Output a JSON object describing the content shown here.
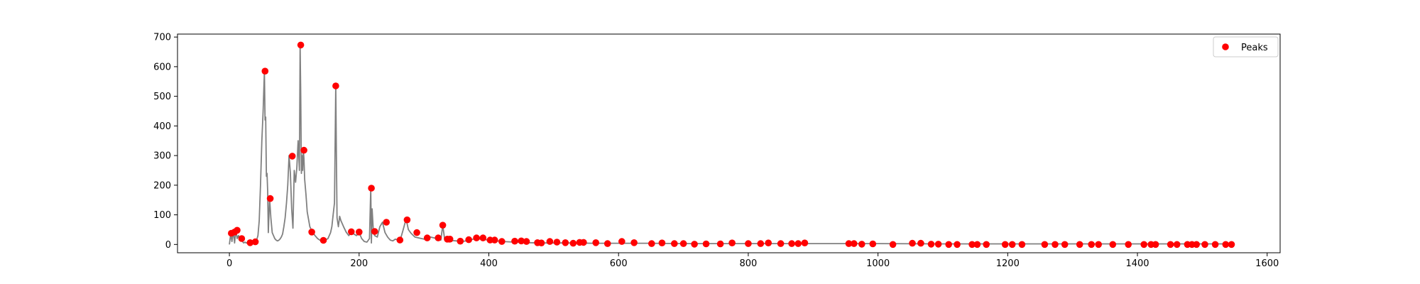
{
  "chart_data": {
    "type": "line",
    "xlim": [
      -80,
      1620
    ],
    "ylim": [
      -28,
      710
    ],
    "x_ticks": [
      0,
      200,
      400,
      600,
      800,
      1000,
      1200,
      1400,
      1600
    ],
    "y_ticks": [
      0,
      100,
      200,
      300,
      400,
      500,
      600,
      700
    ],
    "grid": false,
    "legend_placement": "top-right",
    "colors": {
      "line": "#808080",
      "peaks": "#ff0000",
      "axes": "#000000"
    },
    "series": [
      {
        "kind": "line",
        "x": [
          0,
          2,
          4,
          6,
          8,
          10,
          12,
          14,
          16,
          18,
          20,
          22,
          24,
          26,
          28,
          30,
          32,
          34,
          36,
          38,
          40,
          42,
          44,
          46,
          48,
          50,
          52,
          54,
          55,
          56,
          57,
          58,
          59,
          60,
          62,
          64,
          66,
          68,
          70,
          72,
          74,
          76,
          78,
          80,
          82,
          84,
          86,
          88,
          90,
          92,
          94,
          96,
          98,
          100,
          102,
          104,
          106,
          108,
          109,
          110,
          111,
          112,
          113,
          114,
          115,
          116,
          118,
          120,
          124,
          128,
          132,
          136,
          140,
          144,
          148,
          152,
          156,
          158,
          160,
          162,
          164,
          165,
          166,
          168,
          170,
          172,
          176,
          180,
          184,
          188,
          192,
          196,
          200,
          204,
          208,
          212,
          216,
          218,
          219,
          220,
          222,
          224,
          228,
          232,
          236,
          240,
          244,
          248,
          252,
          256,
          260,
          264,
          268,
          272,
          274,
          276,
          280,
          286,
          292,
          300,
          310,
          320,
          326,
          329,
          332,
          336,
          340,
          350,
          360,
          380,
          400,
          420,
          440,
          460,
          480,
          500,
          530,
          560,
          600,
          650,
          700,
          750,
          800,
          850,
          900,
          950,
          1000,
          1100,
          1200,
          1300,
          1400,
          1500,
          1545
        ],
        "y": [
          0,
          35,
          10,
          45,
          5,
          50,
          20,
          30,
          15,
          20,
          10,
          5,
          8,
          5,
          6,
          4,
          6,
          8,
          6,
          8,
          10,
          15,
          30,
          80,
          200,
          350,
          450,
          585,
          420,
          430,
          230,
          240,
          180,
          40,
          155,
          90,
          40,
          30,
          20,
          15,
          12,
          14,
          18,
          25,
          35,
          60,
          90,
          140,
          200,
          300,
          240,
          120,
          55,
          250,
          210,
          260,
          350,
          250,
          673,
          500,
          240,
          300,
          250,
          320,
          290,
          220,
          170,
          110,
          60,
          42,
          30,
          20,
          14,
          12,
          15,
          20,
          40,
          60,
          100,
          140,
          535,
          300,
          90,
          60,
          95,
          80,
          60,
          42,
          30,
          40,
          35,
          30,
          40,
          20,
          10,
          8,
          20,
          190,
          5,
          120,
          44,
          30,
          25,
          60,
          75,
          40,
          25,
          15,
          12,
          18,
          15,
          20,
          50,
          83,
          70,
          50,
          38,
          25,
          22,
          18,
          25,
          20,
          15,
          65,
          15,
          18,
          14,
          12,
          10,
          20,
          15,
          10,
          8,
          6,
          5,
          5,
          5,
          4,
          4,
          4,
          3,
          3,
          3,
          3,
          3,
          3,
          3,
          2,
          2,
          2,
          2,
          2,
          2
        ]
      },
      {
        "name": "Peaks",
        "kind": "scatter",
        "x": [
          3,
          8,
          12,
          19,
          32,
          40,
          55,
          63,
          97,
          110,
          115,
          127,
          145,
          164,
          188,
          200,
          219,
          224,
          242,
          263,
          274,
          289,
          305,
          322,
          329,
          336,
          340,
          356,
          369,
          381,
          391,
          402,
          409,
          420,
          440,
          450,
          458,
          475,
          481,
          494,
          505,
          518,
          530,
          540,
          546,
          565,
          583,
          605,
          624,
          651,
          667,
          686,
          700,
          717,
          735,
          757,
          775,
          800,
          819,
          831,
          850,
          867,
          877,
          887,
          955,
          963,
          975,
          992,
          1023,
          1053,
          1066,
          1082,
          1093,
          1109,
          1122,
          1145,
          1153,
          1167,
          1196,
          1207,
          1222,
          1257,
          1273,
          1288,
          1311,
          1329,
          1340,
          1362,
          1386,
          1410,
          1421,
          1428,
          1451,
          1461,
          1477,
          1484,
          1491,
          1504,
          1520,
          1536,
          1545
        ],
        "y": [
          38,
          42,
          48,
          20,
          6,
          9,
          585,
          155,
          298,
          673,
          318,
          42,
          14,
          535,
          43,
          42,
          190,
          44,
          75,
          15,
          83,
          40,
          22,
          22,
          65,
          18,
          18,
          11,
          16,
          22,
          22,
          15,
          15,
          10,
          11,
          12,
          10,
          6,
          5,
          10,
          8,
          6,
          4,
          7,
          7,
          6,
          3,
          10,
          6,
          3,
          5,
          3,
          3,
          1,
          2,
          2,
          5,
          3,
          3,
          5,
          3,
          3,
          3,
          5,
          3,
          3,
          1,
          2,
          0,
          4,
          4,
          1,
          1,
          0,
          0,
          0,
          0,
          0,
          0,
          0,
          0,
          0,
          0,
          0,
          0,
          0,
          0,
          0,
          0,
          0,
          0,
          0,
          0,
          0,
          0,
          0,
          0,
          0,
          0,
          0,
          0
        ]
      }
    ],
    "legend": [
      {
        "label": "Peaks",
        "marker": "dot"
      }
    ]
  }
}
